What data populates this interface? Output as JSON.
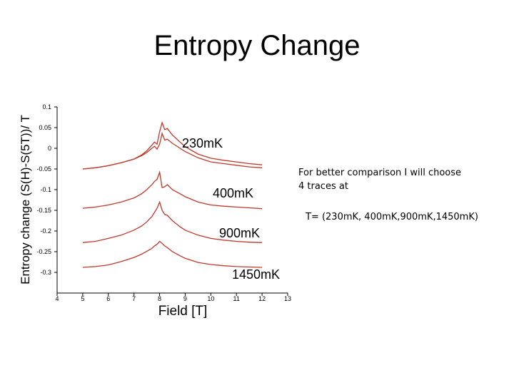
{
  "title": "Entropy Change",
  "note": {
    "line1": "For better comparison I will choose",
    "line2": "4 traces at",
    "line3": "T= (230mK, 400mK,900mK,1450mK)"
  },
  "chart_data": {
    "type": "line",
    "xlabel": "Field [T]",
    "ylabel": "Entropy change (S(H)-S(5T))/ T",
    "xlim": [
      4,
      13
    ],
    "ylim": [
      -0.35,
      0.1
    ],
    "x_ticks": [
      4,
      5,
      6,
      7,
      8,
      9,
      10,
      11,
      12,
      13
    ],
    "y_ticks": [
      0.1,
      0.05,
      0,
      -0.05,
      -0.1,
      -0.15,
      -0.2,
      -0.25,
      -0.3
    ],
    "y_tick_labels": [
      "0.1",
      "0.05",
      "0",
      "-0.05",
      "-0.1",
      "-0.15",
      "-0.2",
      "-0.25",
      "-0.3"
    ],
    "line_color": "#c0392b",
    "series": [
      {
        "name": "230mK",
        "x": [
          5.0,
          5.5,
          6.0,
          6.5,
          7.0,
          7.3,
          7.5,
          7.7,
          7.8,
          7.9,
          8.0,
          8.1,
          8.2,
          8.3,
          8.5,
          8.8,
          9.0,
          9.5,
          10.0,
          10.5,
          11.0,
          11.5,
          12.0
        ],
        "lower": [
          -0.05,
          -0.047,
          -0.042,
          -0.035,
          -0.026,
          -0.018,
          -0.01,
          0.0,
          0.005,
          -0.002,
          0.01,
          0.036,
          0.02,
          0.022,
          0.012,
          0.0,
          -0.008,
          -0.023,
          -0.033,
          -0.037,
          -0.041,
          -0.045,
          -0.047
        ],
        "upper": [
          -0.05,
          -0.047,
          -0.042,
          -0.035,
          -0.026,
          -0.016,
          -0.006,
          0.008,
          0.015,
          0.01,
          0.04,
          0.062,
          0.045,
          0.048,
          0.032,
          0.015,
          0.004,
          -0.014,
          -0.024,
          -0.029,
          -0.033,
          -0.037,
          -0.04
        ]
      },
      {
        "name": "400mK",
        "x": [
          5.0,
          5.5,
          6.0,
          6.5,
          7.0,
          7.3,
          7.5,
          7.7,
          7.8,
          7.9,
          8.0,
          8.1,
          8.2,
          8.3,
          8.5,
          8.8,
          9.0,
          9.5,
          10.0,
          10.5,
          11.0,
          11.5,
          12.0
        ],
        "values": [
          -0.145,
          -0.142,
          -0.137,
          -0.13,
          -0.12,
          -0.11,
          -0.1,
          -0.088,
          -0.08,
          -0.075,
          -0.058,
          -0.095,
          -0.093,
          -0.088,
          -0.1,
          -0.11,
          -0.117,
          -0.13,
          -0.137,
          -0.14,
          -0.142,
          -0.144,
          -0.146
        ]
      },
      {
        "name": "900mK",
        "x": [
          5.0,
          5.5,
          6.0,
          6.5,
          7.0,
          7.3,
          7.5,
          7.7,
          7.8,
          7.9,
          8.0,
          8.1,
          8.2,
          8.3,
          8.5,
          8.8,
          9.0,
          9.5,
          10.0,
          10.5,
          11.0,
          11.5,
          12.0
        ],
        "values": [
          -0.228,
          -0.225,
          -0.218,
          -0.21,
          -0.198,
          -0.188,
          -0.178,
          -0.165,
          -0.155,
          -0.145,
          -0.13,
          -0.15,
          -0.16,
          -0.162,
          -0.175,
          -0.19,
          -0.198,
          -0.21,
          -0.218,
          -0.222,
          -0.225,
          -0.227,
          -0.228
        ]
      },
      {
        "name": "1450mK",
        "x": [
          5.0,
          5.5,
          6.0,
          6.5,
          7.0,
          7.3,
          7.5,
          7.7,
          7.8,
          7.9,
          8.0,
          8.1,
          8.2,
          8.3,
          8.5,
          8.8,
          9.0,
          9.5,
          10.0,
          10.5,
          11.0,
          11.5,
          12.0
        ],
        "values": [
          -0.288,
          -0.286,
          -0.282,
          -0.274,
          -0.264,
          -0.256,
          -0.249,
          -0.242,
          -0.236,
          -0.232,
          -0.225,
          -0.23,
          -0.236,
          -0.24,
          -0.25,
          -0.26,
          -0.266,
          -0.276,
          -0.281,
          -0.284,
          -0.286,
          -0.287,
          -0.288
        ]
      }
    ]
  }
}
